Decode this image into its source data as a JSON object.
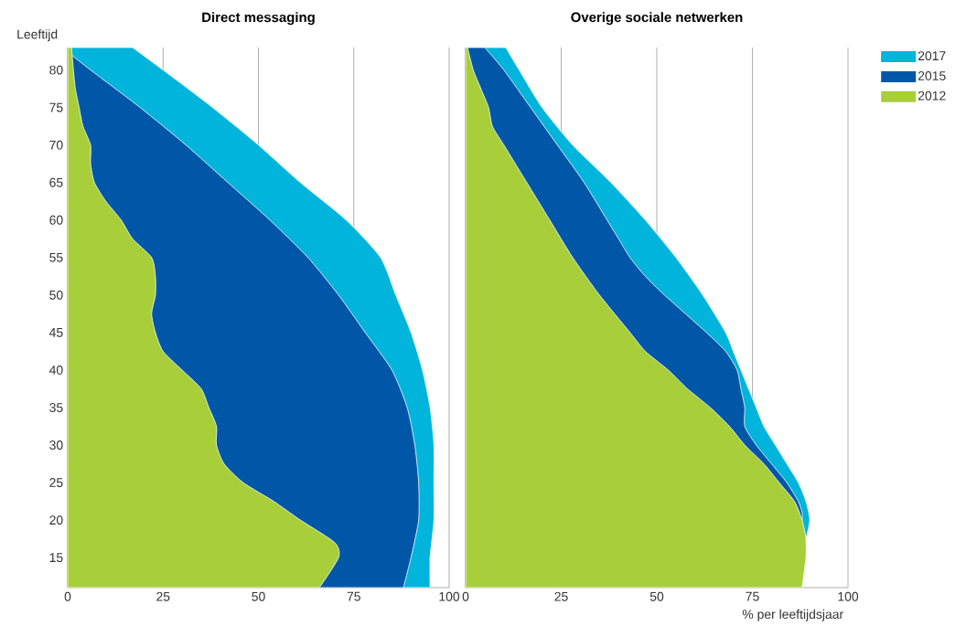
{
  "chart_data": [
    {
      "type": "area",
      "orientation": "horizontal",
      "title": "Direct messaging",
      "ylabel": "Leeftijd",
      "xlim": [
        0,
        100
      ],
      "xticks": [
        0,
        25,
        50,
        75,
        100
      ],
      "ylim": [
        11,
        83
      ],
      "yticks": [
        15,
        20,
        25,
        30,
        35,
        40,
        45,
        50,
        55,
        60,
        65,
        70,
        75,
        80
      ],
      "grid": "x",
      "legend": "right",
      "series": [
        {
          "name": "2017",
          "color": "#00b4dc",
          "x": [
            11,
            15,
            20,
            25,
            30,
            35,
            40,
            45,
            50,
            55,
            60,
            65,
            70,
            75,
            80,
            83
          ],
          "values": [
            95,
            95,
            96,
            96,
            96,
            95,
            93,
            90,
            86,
            82,
            73,
            61,
            50,
            38,
            25,
            17
          ]
        },
        {
          "name": "2015",
          "color": "#0057a8",
          "x": [
            11,
            15,
            20,
            25,
            30,
            35,
            40,
            45,
            50,
            55,
            60,
            65,
            70,
            75,
            80,
            82
          ],
          "values": [
            88,
            90,
            92,
            92,
            91,
            89,
            85,
            78,
            71,
            63,
            53,
            42,
            31,
            19,
            6,
            1
          ]
        },
        {
          "name": "2012",
          "color": "#a8ce3a",
          "x": [
            11,
            15,
            17,
            20,
            22.5,
            25,
            27.5,
            30,
            32.5,
            35,
            37.5,
            40,
            42.5,
            45,
            47.5,
            50,
            52.5,
            55,
            57.5,
            60,
            62.5,
            65,
            67.5,
            70,
            72.5,
            75,
            77.5,
            80,
            83
          ],
          "values": [
            66,
            71,
            70,
            61,
            54,
            46,
            41,
            39,
            39,
            37,
            35,
            30,
            25,
            23,
            22,
            23,
            23,
            22,
            17,
            14,
            10,
            7,
            6,
            6,
            4,
            3,
            2,
            1.5,
            1
          ]
        }
      ]
    },
    {
      "type": "area",
      "orientation": "horizontal",
      "title": "Overige sociale netwerken",
      "xlabel": "% per leeftijdsjaar",
      "xlim": [
        0,
        100
      ],
      "xticks": [
        0,
        25,
        50,
        75,
        100
      ],
      "ylim": [
        11,
        83
      ],
      "grid": "x",
      "tick_labels": "x",
      "series": [
        {
          "color": "#00b4dc",
          "x": [
            17.5,
            20,
            22.5,
            25,
            27.5,
            30,
            32.5,
            35,
            37.5,
            40,
            42.5,
            45,
            50,
            55,
            60,
            65,
            70,
            75,
            80,
            83
          ],
          "values": [
            89,
            90,
            89,
            87,
            84,
            81,
            78,
            76,
            74,
            72,
            70,
            68,
            62,
            55,
            47,
            38,
            28,
            20,
            14,
            10.5
          ]
        },
        {
          "color": "#0057a8",
          "x": [
            20,
            21,
            22.5,
            25,
            27.5,
            30,
            32.5,
            35,
            37.5,
            40,
            42.5,
            45,
            50,
            52.5,
            55,
            57.5,
            60,
            65,
            70,
            75,
            80,
            83
          ],
          "values": [
            88,
            88,
            87,
            84,
            80,
            76,
            73,
            73,
            72,
            71,
            68,
            63,
            52,
            47,
            43,
            40,
            37,
            31,
            24,
            17,
            10,
            5
          ]
        },
        {
          "color": "#a8ce3a",
          "x": [
            11,
            15,
            17.5,
            20,
            22.5,
            25,
            27.5,
            30,
            32.5,
            35,
            37.5,
            40,
            42.5,
            45,
            50,
            55,
            60,
            65,
            67.5,
            70,
            72.5,
            75,
            77.5,
            80,
            83
          ],
          "values": [
            88,
            89,
            89,
            88,
            86,
            82,
            78,
            73,
            69,
            64,
            58,
            53,
            47,
            43,
            35,
            28,
            22,
            16,
            13,
            10,
            7,
            6,
            4,
            2,
            0.5
          ]
        }
      ]
    }
  ]
}
